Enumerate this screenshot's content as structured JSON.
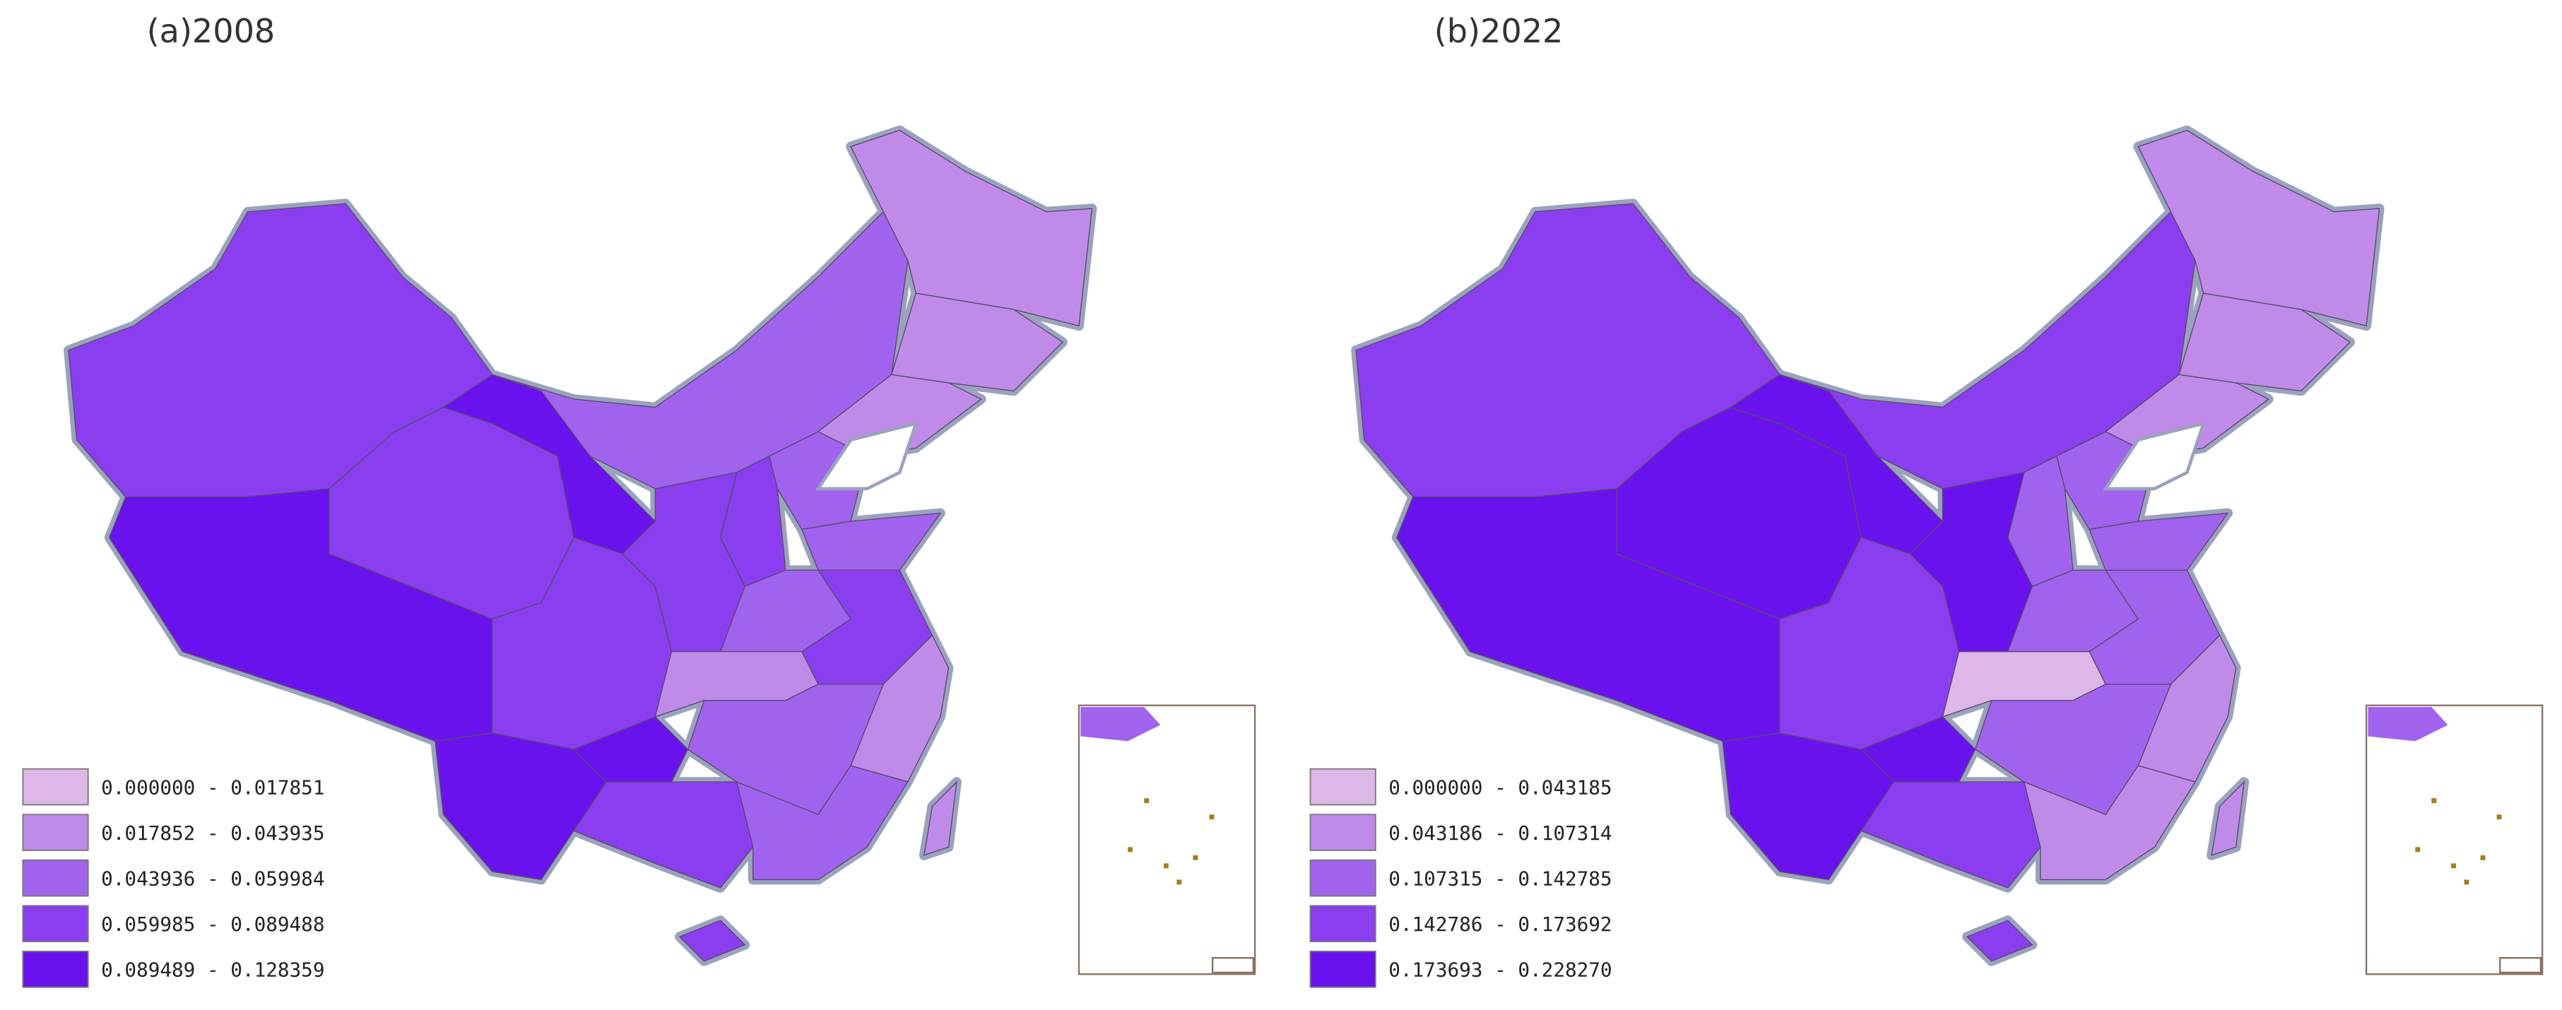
{
  "panels": [
    {
      "title": "(a)2008",
      "legend": [
        {
          "label": "0.000000 - 0.017851",
          "color": "#dcb7e8"
        },
        {
          "label": "0.017852 - 0.043935",
          "color": "#c08ae9"
        },
        {
          "label": "0.043936 - 0.059984",
          "color": "#a163ee"
        },
        {
          "label": "0.059985 - 0.089488",
          "color": "#8a3ef0"
        },
        {
          "label": "0.089489 - 0.128359",
          "color": "#6a12ee"
        }
      ]
    },
    {
      "title": "(b)2022",
      "legend": [
        {
          "label": "0.000000 - 0.043185",
          "color": "#dcb7e8"
        },
        {
          "label": "0.043186 - 0.107314",
          "color": "#c08ae9"
        },
        {
          "label": "0.107315 - 0.142785",
          "color": "#a163ee"
        },
        {
          "label": "0.142786 - 0.173692",
          "color": "#8a3ef0"
        },
        {
          "label": "0.173693 - 0.228270",
          "color": "#6a12ee"
        }
      ]
    }
  ]
}
